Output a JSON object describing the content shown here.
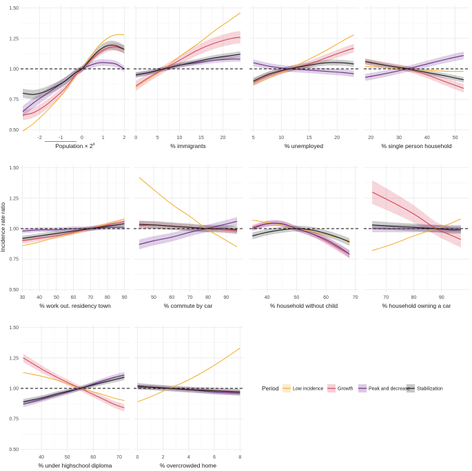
{
  "chart_data": {
    "type": "line",
    "ylabel": "Incidence rate ratio",
    "y_ticks": [
      "0.50",
      "0.75",
      "1.00",
      "1.25",
      "1.50"
    ],
    "ylim": [
      0.48,
      1.52
    ],
    "reference_line": 1.0,
    "legend": {
      "title": "Period",
      "position": "bottom-right",
      "entries": [
        {
          "name": "Low incidence",
          "color": "#f2b134"
        },
        {
          "name": "Growth",
          "color": "#d6455a"
        },
        {
          "name": "Peak and decrease",
          "color": "#6a2b8a"
        },
        {
          "name": "Stabilization",
          "color": "#1a1a1a"
        }
      ]
    },
    "series_names": [
      "Low incidence",
      "Growth",
      "Peak and decrease",
      "Stabilization"
    ],
    "colors": {
      "Low incidence": "#f2b134",
      "Growth": "#d6455a",
      "Peak and decrease": "#6a2b8a",
      "Stabilization": "#1a1a1a"
    },
    "panels": [
      {
        "xlabel": "Population × 2",
        "xlabel_sup": "x",
        "xlim": [
          -2.9,
          2.25
        ],
        "x_ticks": [
          -2,
          -1,
          0,
          1,
          2
        ],
        "x_tick_labels": [
          "-2",
          "-1",
          "0",
          "1",
          "2"
        ],
        "x": [
          -2.8,
          -2.3,
          -1.8,
          -1.3,
          -0.8,
          -0.3,
          0,
          0.4,
          0.8,
          1.2,
          1.6,
          2.0
        ],
        "series": [
          {
            "name": "Low incidence",
            "values": [
              0.49,
              0.55,
              0.63,
              0.72,
              0.82,
              0.94,
              1.0,
              1.1,
              1.19,
              1.25,
              1.28,
              1.28
            ],
            "ci": 0.0
          },
          {
            "name": "Growth",
            "values": [
              0.62,
              0.64,
              0.69,
              0.76,
              0.84,
              0.95,
              1.0,
              1.07,
              1.13,
              1.17,
              1.18,
              1.16
            ],
            "ci": 0.035
          },
          {
            "name": "Peak and decrease",
            "values": [
              0.65,
              0.72,
              0.78,
              0.84,
              0.9,
              0.97,
              1.0,
              1.03,
              1.05,
              1.05,
              1.04,
              1.0
            ],
            "ci": 0.04
          },
          {
            "name": "Stabilization",
            "values": [
              0.8,
              0.79,
              0.81,
              0.85,
              0.9,
              0.97,
              1.0,
              1.08,
              1.15,
              1.19,
              1.19,
              1.16
            ],
            "ci": 0.04
          }
        ]
      },
      {
        "xlabel": "% immigrants",
        "xlim": [
          -0.5,
          24.5
        ],
        "x_ticks": [
          0,
          5,
          10,
          15,
          20
        ],
        "x_tick_labels": [
          "0",
          "5",
          "10",
          "15",
          "20"
        ],
        "x": [
          0,
          3,
          6.5,
          10,
          14,
          18,
          22,
          24
        ],
        "series": [
          {
            "name": "Low incidence",
            "values": [
              0.85,
              0.92,
              1.0,
              1.1,
              1.2,
              1.31,
              1.41,
              1.46
            ],
            "ci": 0.0
          },
          {
            "name": "Growth",
            "values": [
              0.86,
              0.93,
              1.0,
              1.07,
              1.15,
              1.21,
              1.25,
              1.26
            ],
            "ci": 0.05
          },
          {
            "name": "Peak and decrease",
            "values": [
              0.95,
              0.97,
              1.0,
              1.03,
              1.05,
              1.07,
              1.08,
              1.08
            ],
            "ci": 0.03
          },
          {
            "name": "Stabilization",
            "values": [
              0.95,
              0.97,
              1.0,
              1.03,
              1.06,
              1.09,
              1.11,
              1.12
            ],
            "ci": 0.03
          }
        ]
      },
      {
        "xlabel": "% unemployed",
        "xlim": [
          4.3,
          23.8
        ],
        "x_ticks": [
          5,
          10,
          15,
          20
        ],
        "x_tick_labels": [
          "5",
          "10",
          "15",
          "20"
        ],
        "x": [
          5,
          8,
          11.5,
          15,
          18,
          21,
          23
        ],
        "series": [
          {
            "name": "Low incidence",
            "values": [
              0.87,
              0.93,
              1.0,
              1.08,
              1.15,
              1.23,
              1.28
            ],
            "ci": 0.0
          },
          {
            "name": "Growth",
            "values": [
              0.89,
              0.95,
              1.0,
              1.04,
              1.09,
              1.14,
              1.17
            ],
            "ci": 0.04
          },
          {
            "name": "Peak and decrease",
            "values": [
              1.05,
              1.02,
              1.0,
              0.99,
              0.98,
              0.97,
              0.96
            ],
            "ci": 0.04
          },
          {
            "name": "Stabilization",
            "values": [
              0.9,
              0.96,
              1.0,
              1.03,
              1.05,
              1.05,
              1.04
            ],
            "ci": 0.035
          }
        ]
      },
      {
        "xlabel": "% single person household",
        "xlim": [
          17.5,
          55
        ],
        "x_ticks": [
          20,
          30,
          40,
          50
        ],
        "x_tick_labels": [
          "20",
          "30",
          "40",
          "50"
        ],
        "x": [
          18,
          25,
          33,
          40,
          47,
          53
        ],
        "series": [
          {
            "name": "Low incidence",
            "values": [
              1.02,
              1.01,
              1.0,
              0.99,
              0.98,
              0.98
            ],
            "ci": 0.0
          },
          {
            "name": "Growth",
            "values": [
              1.06,
              1.03,
              1.0,
              0.95,
              0.89,
              0.84
            ],
            "ci": 0.04
          },
          {
            "name": "Peak and decrease",
            "values": [
              0.93,
              0.96,
              1.0,
              1.04,
              1.08,
              1.11
            ],
            "ci": 0.04
          },
          {
            "name": "Stabilization",
            "values": [
              1.06,
              1.03,
              1.0,
              0.97,
              0.94,
              0.91
            ],
            "ci": 0.03
          }
        ]
      },
      {
        "xlabel": "% work out. residency town",
        "xlim": [
          29,
          93
        ],
        "x_ticks": [
          30,
          40,
          50,
          60,
          70,
          80,
          90
        ],
        "x_tick_labels": [
          "30",
          "40",
          "50",
          "60",
          "70",
          "80",
          "90"
        ],
        "x": [
          30,
          40,
          50,
          60,
          70,
          80,
          90
        ],
        "series": [
          {
            "name": "Low incidence",
            "values": [
              0.86,
              0.89,
              0.93,
              0.96,
              1.0,
              1.04,
              1.08
            ],
            "ci": 0.0
          },
          {
            "name": "Growth",
            "values": [
              0.9,
              0.92,
              0.94,
              0.97,
              1.0,
              1.03,
              1.06
            ],
            "ci": 0.03
          },
          {
            "name": "Peak and decrease",
            "values": [
              0.98,
              0.99,
              0.99,
              1.0,
              1.0,
              1.01,
              1.01
            ],
            "ci": 0.03
          },
          {
            "name": "Stabilization",
            "values": [
              0.92,
              0.94,
              0.96,
              0.98,
              1.0,
              1.02,
              1.04
            ],
            "ci": 0.03
          }
        ]
      },
      {
        "xlabel": "% commute by car",
        "xlim": [
          39,
          99
        ],
        "x_ticks": [
          50,
          60,
          70,
          80,
          90
        ],
        "x_tick_labels": [
          "50",
          "60",
          "70",
          "80",
          "90"
        ],
        "x": [
          42,
          50,
          60,
          70,
          79,
          88,
          96
        ],
        "series": [
          {
            "name": "Low incidence",
            "values": [
              1.42,
              1.32,
              1.2,
              1.1,
              1.0,
              0.92,
              0.85
            ],
            "ci": 0.0
          },
          {
            "name": "Growth",
            "values": [
              1.04,
              1.03,
              1.02,
              1.01,
              1.0,
              0.99,
              0.98
            ],
            "ci": 0.04
          },
          {
            "name": "Peak and decrease",
            "values": [
              0.87,
              0.9,
              0.93,
              0.97,
              1.0,
              1.03,
              1.06
            ],
            "ci": 0.05
          },
          {
            "name": "Stabilization",
            "values": [
              1.03,
              1.03,
              1.02,
              1.01,
              1.0,
              1.0,
              0.99
            ],
            "ci": 0.05
          }
        ]
      },
      {
        "xlabel": "% household without child",
        "xlim": [
          34,
          71
        ],
        "x_ticks": [
          40,
          50,
          60,
          70
        ],
        "x_tick_labels": [
          "40",
          "50",
          "60",
          "70"
        ],
        "x": [
          35,
          40,
          45,
          50,
          55,
          60,
          65,
          68
        ],
        "series": [
          {
            "name": "Low incidence",
            "values": [
              1.07,
              1.05,
              1.03,
              1.0,
              0.98,
              0.95,
              0.92,
              0.9
            ],
            "ci": 0.0
          },
          {
            "name": "Growth",
            "values": [
              1.01,
              1.04,
              1.04,
              1.0,
              0.96,
              0.9,
              0.83,
              0.79
            ],
            "ci": 0.035
          },
          {
            "name": "Peak and decrease",
            "values": [
              1.0,
              1.04,
              1.04,
              1.0,
              0.96,
              0.91,
              0.84,
              0.79
            ],
            "ci": 0.035
          },
          {
            "name": "Stabilization",
            "values": [
              0.94,
              0.97,
              0.99,
              1.0,
              0.99,
              0.96,
              0.92,
              0.89
            ],
            "ci": 0.04
          }
        ]
      },
      {
        "xlabel": "% household owning a car",
        "xlim": [
          62,
          100
        ],
        "x_ticks": [
          70,
          80,
          90
        ],
        "x_tick_labels": [
          "70",
          "80",
          "90"
        ],
        "x": [
          65,
          72,
          80,
          88,
          93,
          97
        ],
        "series": [
          {
            "name": "Low incidence",
            "values": [
              0.82,
              0.87,
              0.94,
              1.0,
              1.04,
              1.08
            ],
            "ci": 0.0
          },
          {
            "name": "Growth",
            "values": [
              1.3,
              1.22,
              1.12,
              1.0,
              0.95,
              0.91
            ],
            "ci": 0.09
          },
          {
            "name": "Peak and decrease",
            "values": [
              1.0,
              1.0,
              1.0,
              1.0,
              1.0,
              1.0
            ],
            "ci": 0.05
          },
          {
            "name": "Stabilization",
            "values": [
              1.03,
              1.02,
              1.01,
              1.0,
              0.99,
              0.99
            ],
            "ci": 0.05
          }
        ]
      },
      {
        "xlabel": "% under highschool diploma",
        "xlim": [
          32,
          74
        ],
        "x_ticks": [
          40,
          50,
          60,
          70
        ],
        "x_tick_labels": [
          "40",
          "50",
          "60",
          "70"
        ],
        "x": [
          33,
          40,
          47,
          55,
          62,
          68,
          72
        ],
        "series": [
          {
            "name": "Low incidence",
            "values": [
              1.13,
              1.1,
              1.06,
              1.0,
              0.96,
              0.92,
              0.9
            ],
            "ci": 0.0
          },
          {
            "name": "Growth",
            "values": [
              1.25,
              1.16,
              1.08,
              1.0,
              0.93,
              0.87,
              0.84
            ],
            "ci": 0.035
          },
          {
            "name": "Peak and decrease",
            "values": [
              0.87,
              0.91,
              0.95,
              1.0,
              1.05,
              1.09,
              1.11
            ],
            "ci": 0.03
          },
          {
            "name": "Stabilization",
            "values": [
              0.89,
              0.92,
              0.96,
              1.0,
              1.04,
              1.07,
              1.09
            ],
            "ci": 0.03
          }
        ]
      },
      {
        "xlabel": "% overcrowded home",
        "xlim": [
          -0.3,
          8.2
        ],
        "x_ticks": [
          0,
          2,
          4,
          6,
          8
        ],
        "x_tick_labels": [
          "0",
          "2",
          "4",
          "6",
          "8"
        ],
        "x": [
          0,
          1,
          2.5,
          4,
          6,
          8
        ],
        "series": [
          {
            "name": "Low incidence",
            "values": [
              0.89,
              0.93,
              1.0,
              1.07,
              1.19,
              1.33
            ],
            "ci": 0.0
          },
          {
            "name": "Growth",
            "values": [
              1.02,
              1.01,
              1.0,
              0.99,
              0.98,
              0.97
            ],
            "ci": 0.02
          },
          {
            "name": "Peak and decrease",
            "values": [
              1.01,
              1.01,
              1.0,
              0.99,
              0.97,
              0.96
            ],
            "ci": 0.03
          },
          {
            "name": "Stabilization",
            "values": [
              1.02,
              1.01,
              1.0,
              0.99,
              0.98,
              0.97
            ],
            "ci": 0.04
          }
        ]
      }
    ]
  }
}
